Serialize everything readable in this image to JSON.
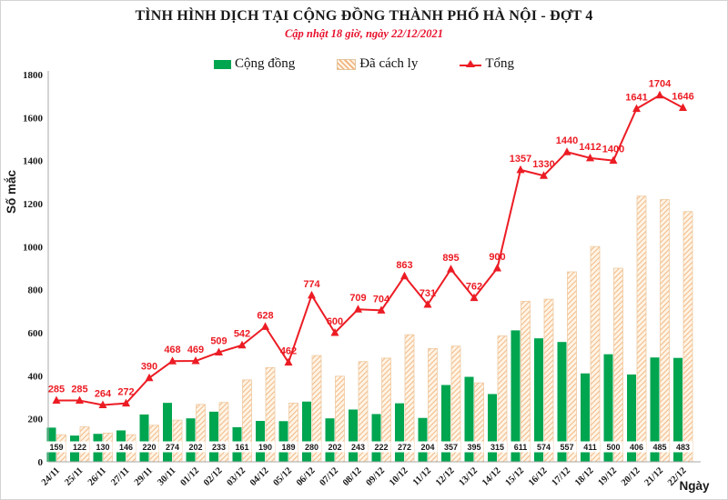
{
  "header": {
    "title": "TÌNH HÌNH DỊCH TẠI CỘNG ĐỒNG THÀNH PHỐ HÀ NỘI - ĐỢT 4",
    "subtitle": "Cập nhật 18 giờ, ngày 22/12/2021"
  },
  "legend": {
    "items": [
      {
        "label": "Cộng đồng",
        "swatch": "solid-green-square"
      },
      {
        "label": "Đã cách ly",
        "swatch": "hatched-orange-square"
      },
      {
        "label": "Tổng",
        "swatch": "red-line-with-triangle-marker"
      }
    ]
  },
  "axes": {
    "y_title": "Số mắc",
    "x_title": "Ngày",
    "y_ticks": [
      0,
      200,
      400,
      600,
      800,
      1000,
      1200,
      1400,
      1600,
      1800
    ]
  },
  "colors": {
    "community_green": "#00a550",
    "quarantine_hatch": "#f0ae77",
    "quarantine_bg": "#fef4e5",
    "quarantine_border": "#edc497",
    "total_red": "#ec1c24",
    "axis_gray": "#a8a8a8",
    "label_black": "#1a1a1a"
  },
  "chart_data": {
    "type": "bar",
    "title": "TÌNH HÌNH DỊCH TẠI CỘNG ĐỒNG THÀNH PHỐ HÀ NỘI - ĐỢT 4",
    "subtitle": "Cập nhật 18 giờ, ngày 22/12/2021",
    "xlabel": "Ngày",
    "ylabel": "Số mắc",
    "ylim": [
      0,
      1800
    ],
    "grid": false,
    "legend_position": "top",
    "categories": [
      "24/11",
      "25/11",
      "26/11",
      "27/11",
      "29/11",
      "30/11",
      "01/12",
      "02/12",
      "03/12",
      "04/12",
      "05/12",
      "06/12",
      "07/12",
      "08/12",
      "09/12",
      "10/12",
      "11/12",
      "12/12",
      "13/12",
      "14/12",
      "15/12",
      "16/12",
      "17/12",
      "18/12",
      "19/12",
      "20/12",
      "21/12",
      "22/12"
    ],
    "series": [
      {
        "name": "Cộng đồng",
        "type": "bar",
        "color": "#00a550",
        "data_labels": "white-box-at-base",
        "values": [
          159,
          122,
          130,
          146,
          220,
          274,
          202,
          233,
          161,
          190,
          189,
          280,
          202,
          243,
          222,
          272,
          204,
          357,
          395,
          315,
          611,
          574,
          557,
          411,
          500,
          406,
          485,
          483
        ]
      },
      {
        "name": "Đã cách ly",
        "type": "bar",
        "style": "diagonal-hatch",
        "color": "#f0ae77",
        "values": [
          126,
          163,
          134,
          126,
          170,
          194,
          267,
          276,
          381,
          438,
          273,
          494,
          398,
          466,
          482,
          591,
          527,
          538,
          367,
          585,
          746,
          756,
          883,
          1001,
          900,
          1235,
          1219,
          1163
        ]
      },
      {
        "name": "Tổng",
        "type": "line",
        "color": "#ec1c24",
        "marker": "filled-triangle-up",
        "data_labels": "above-points",
        "values": [
          285,
          285,
          264,
          272,
          390,
          468,
          469,
          509,
          542,
          628,
          462,
          774,
          600,
          709,
          704,
          863,
          731,
          895,
          762,
          900,
          1357,
          1330,
          1440,
          1412,
          1400,
          1641,
          1704,
          1646
        ]
      }
    ]
  }
}
